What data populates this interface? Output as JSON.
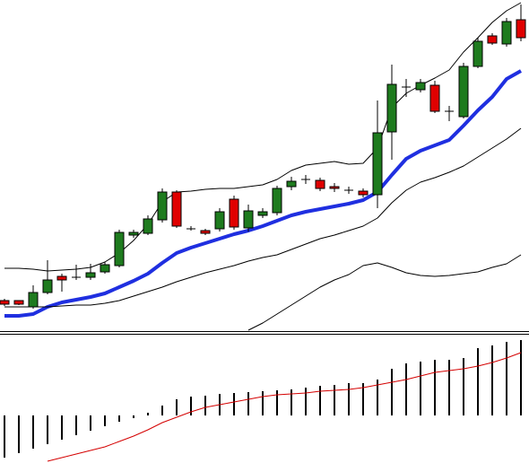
{
  "chart_data": [
    {
      "type": "candlestick",
      "up_color": "#1e7b1e",
      "down_color": "#e00000",
      "flat_color": "#000000",
      "ylim": [
        0,
        370
      ],
      "open": [
        35,
        35,
        28,
        44,
        62,
        61,
        61,
        67,
        74,
        108,
        110,
        125,
        156,
        115,
        113,
        115,
        148,
        116,
        130,
        133,
        162,
        170,
        169,
        162,
        158,
        157,
        153,
        223,
        273,
        270,
        275,
        246,
        240,
        296,
        330,
        321,
        348
      ],
      "close": [
        31,
        31,
        44,
        58,
        58,
        60,
        66,
        75,
        111,
        111,
        126,
        156,
        118,
        114,
        110,
        134,
        117,
        135,
        134,
        160,
        168,
        170,
        160,
        160,
        158,
        153,
        222,
        276,
        273,
        278,
        246,
        246,
        296,
        324,
        322,
        346,
        328
      ],
      "high": [
        37,
        35,
        52,
        80,
        65,
        75,
        76,
        78,
        114,
        114,
        130,
        160,
        158,
        118,
        115,
        138,
        152,
        142,
        138,
        163,
        173,
        175,
        172,
        166,
        162,
        160,
        258,
        298,
        282,
        282,
        280,
        252,
        300,
        328,
        333,
        350,
        365
      ],
      "low": [
        29,
        30,
        26,
        42,
        45,
        58,
        58,
        65,
        72,
        105,
        108,
        122,
        116,
        113,
        108,
        112,
        114,
        112,
        127,
        130,
        158,
        165,
        157,
        156,
        154,
        150,
        138,
        192,
        262,
        267,
        244,
        235,
        238,
        294,
        320,
        318,
        324
      ],
      "series": [
        {
          "color": "#1f2fe0",
          "width": 4,
          "values": [
            18,
            18,
            20,
            28,
            33,
            36,
            39,
            43,
            50,
            57,
            65,
            77,
            88,
            94,
            99,
            104,
            109,
            113,
            118,
            124,
            130,
            134,
            137,
            140,
            143,
            147,
            156,
            175,
            193,
            202,
            208,
            214,
            230,
            247,
            262,
            282,
            291
          ]
        },
        {
          "color": "#000000",
          "width": 1,
          "values": [
            71,
            71,
            70,
            68,
            69,
            70,
            72,
            78,
            88,
            102,
            120,
            145,
            156,
            157,
            159,
            160,
            160,
            162,
            164,
            170,
            180,
            186,
            188,
            190,
            187,
            188,
            205,
            250,
            266,
            275,
            283,
            292,
            312,
            328,
            345,
            358,
            367
          ]
        },
        {
          "color": "#000000",
          "width": 1,
          "values": [
            28,
            28,
            28,
            28,
            29,
            30,
            30,
            32,
            35,
            40,
            45,
            50,
            56,
            61,
            66,
            70,
            74,
            79,
            83,
            86,
            92,
            98,
            104,
            108,
            113,
            118,
            127,
            144,
            158,
            167,
            172,
            178,
            185,
            195,
            205,
            215,
            227
          ]
        },
        {
          "color": "#000000",
          "width": 1,
          "values": [
            null,
            null,
            null,
            null,
            null,
            null,
            null,
            null,
            null,
            null,
            null,
            null,
            null,
            null,
            null,
            null,
            null,
            2,
            10,
            20,
            30,
            40,
            50,
            58,
            64,
            74,
            77,
            72,
            66,
            63,
            62,
            63,
            65,
            67,
            72,
            76,
            86
          ]
        }
      ]
    },
    {
      "type": "bar",
      "color": "#000000",
      "ylim": [
        -53,
        88
      ],
      "values": [
        -47,
        -42,
        -37,
        -32,
        -27,
        -22,
        -17,
        -12,
        -7,
        -3,
        3,
        11,
        18,
        21,
        22,
        24,
        25,
        26,
        27,
        28,
        29,
        31,
        33,
        34,
        36,
        36,
        40,
        52,
        58,
        60,
        62,
        62,
        64,
        75,
        78,
        82,
        84
      ],
      "series": [
        {
          "color": "#d40000",
          "width": 1,
          "values": [
            null,
            null,
            null,
            -51,
            -47,
            -43,
            -39,
            -35,
            -29,
            -23,
            -16,
            -8,
            -2,
            4,
            9,
            12,
            15,
            18,
            21,
            23,
            24,
            25,
            27,
            28,
            29,
            31,
            34,
            37,
            40,
            44,
            48,
            50,
            52,
            55,
            59,
            64,
            70
          ]
        }
      ]
    }
  ]
}
